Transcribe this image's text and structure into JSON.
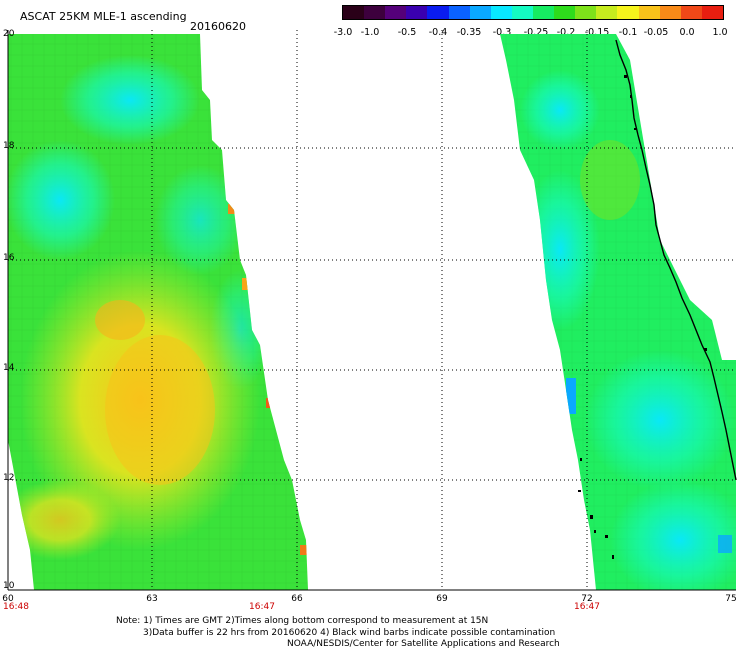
{
  "header": {
    "title": "ASCAT 25KM MLE-1 ascending",
    "date": "20160620"
  },
  "colorbar": {
    "labels": [
      "-3.0",
      "-1.0",
      "-0.5",
      "-0.4",
      "-0.35",
      "-0.3",
      "-0.25",
      "-0.2",
      "-0.15",
      "-0.1",
      "-0.05",
      "0.0",
      "1.0"
    ],
    "colors": [
      "#2a0018",
      "#3d003d",
      "#55007a",
      "#3a00b0",
      "#0a1cf0",
      "#0a62ff",
      "#0aa8ff",
      "#08e8ff",
      "#14fbc2",
      "#16ec62",
      "#2edc1c",
      "#7ee21a",
      "#c6ec1e",
      "#f6f41c",
      "#f8c21a",
      "#f88a18",
      "#f04818",
      "#e81e10"
    ]
  },
  "map": {
    "lat_labels": [
      "20",
      "18",
      "16",
      "14",
      "12",
      "10"
    ],
    "lon_labels": [
      "60",
      "63",
      "66",
      "69",
      "72",
      "75"
    ],
    "time_labels": [
      "16:48",
      "16:47",
      "16:47"
    ]
  },
  "notes": {
    "line1": "Note: 1) Times are GMT 2)Times along bottom correspond to measurement at 15N",
    "line2": "3)Data buffer is 22 hrs from 20160620 4) Black wind barbs indicate possible contamination",
    "line3": "NOAA/NESDIS/Center for Satellite Applications and Research"
  }
}
